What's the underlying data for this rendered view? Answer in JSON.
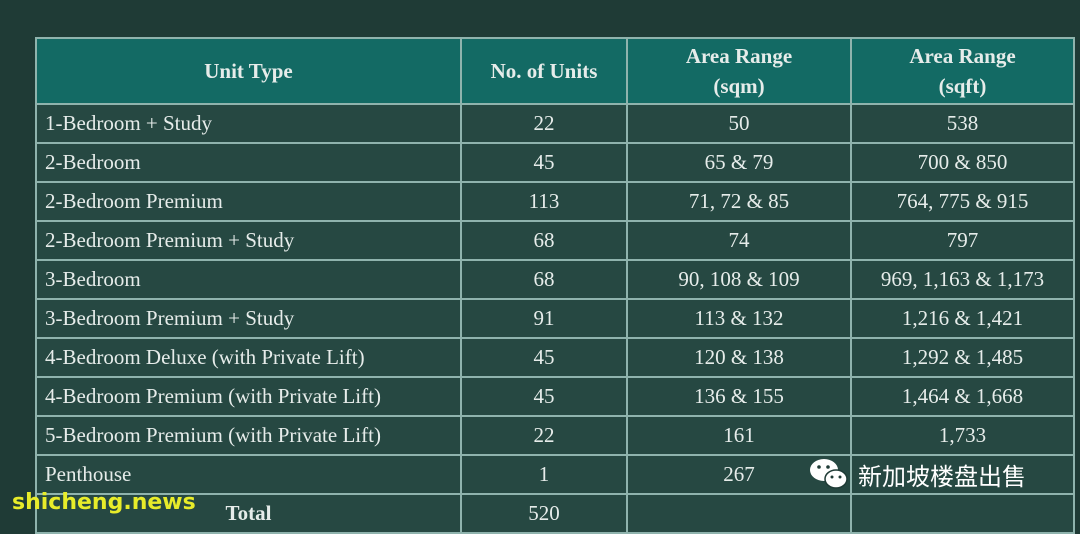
{
  "table": {
    "headers": [
      {
        "line1": "Unit Type",
        "line2": ""
      },
      {
        "line1": "No. of Units",
        "line2": ""
      },
      {
        "line1": "Area Range",
        "line2": "(sqm)"
      },
      {
        "line1": "Area Range",
        "line2": "(sqft)"
      }
    ],
    "rows": [
      [
        "1-Bedroom + Study",
        "22",
        "50",
        "538"
      ],
      [
        "2-Bedroom",
        "45",
        "65 & 79",
        "700 & 850"
      ],
      [
        "2-Bedroom Premium",
        "113",
        "71, 72 & 85",
        "764, 775 & 915"
      ],
      [
        "2-Bedroom Premium + Study",
        "68",
        "74",
        "797"
      ],
      [
        "3-Bedroom",
        "68",
        "90, 108 & 109",
        "969, 1,163 & 1,173"
      ],
      [
        "3-Bedroom Premium + Study",
        "91",
        "113 & 132",
        "1,216 & 1,421"
      ],
      [
        "4-Bedroom Deluxe (with Private Lift)",
        "45",
        "120 & 138",
        "1,292 & 1,485"
      ],
      [
        "4-Bedroom Premium (with Private Lift)",
        "45",
        "136 & 155",
        "1,464 & 1,668"
      ],
      [
        "5-Bedroom Premium (with Private Lift)",
        "22",
        "161",
        "1,733"
      ],
      [
        "Penthouse",
        "1",
        "267",
        ""
      ]
    ],
    "total": {
      "label": "Total",
      "units": "520"
    }
  },
  "watermarks": {
    "left": "shicheng.news",
    "right": "新加坡楼盘出售",
    "right_icon": "wechat-icon"
  },
  "colors": {
    "background": "#1f3b36",
    "header": "#136a64",
    "cell": "#264842",
    "border": "#8fb3ad",
    "watermark_left": "#e8ec2a"
  }
}
